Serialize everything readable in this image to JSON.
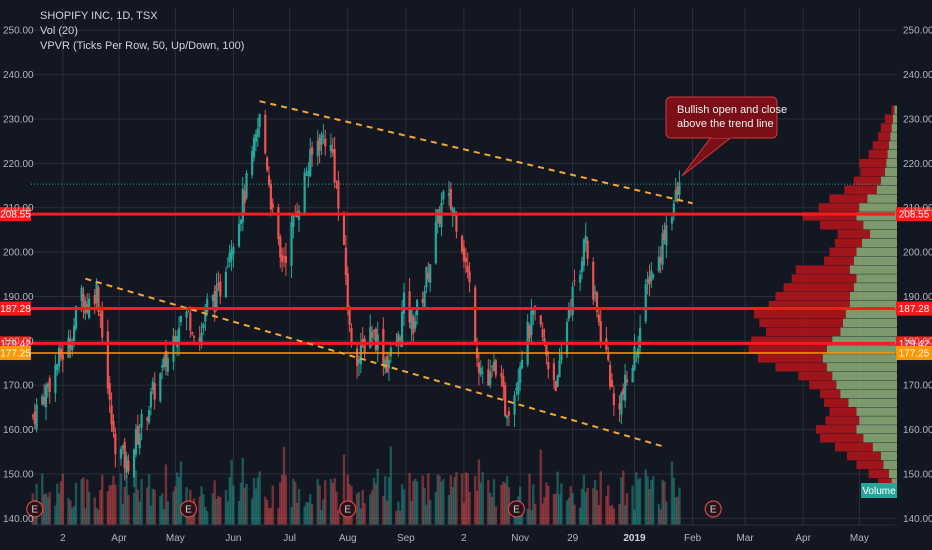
{
  "legend": {
    "symbol_line": "SHOPIFY INC, 1D, TSX",
    "volume_line": "Vol (20)",
    "vpvr_line": "VPVR (Ticks Per Row, 50, Up/Down, 100)"
  },
  "annotation": {
    "line1": "Bullish open and close",
    "line2": "above the trend line"
  },
  "volume_tag": "Volume",
  "earnings_marker": "E",
  "colors": {
    "background": "#131722",
    "grid": "#2a2e39",
    "up": "#26a69a",
    "down": "#ef5350",
    "level_line": "#ff1a1a",
    "level_line_orange": "#ff9800",
    "trendline": "#f7a633",
    "annotation_fill": "#7a0f17",
    "annotation_border": "#d23a42",
    "vpvr_up": "#8fb07a",
    "vpvr_down": "#b0151c"
  },
  "chart_data": {
    "type": "candlestick",
    "title": "SHOPIFY INC, 1D, TSX",
    "y_range": [
      138.5,
      255.0
    ],
    "y_ticks": [
      140,
      150,
      160,
      170,
      180,
      190,
      200,
      210,
      220,
      230,
      240,
      250
    ],
    "y_tick_labels": [
      "140.00",
      "150.00",
      "160.00",
      "170.00",
      "180.00",
      "190.00",
      "200.00",
      "210.00",
      "220.00",
      "230.00",
      "240.00",
      "250.00"
    ],
    "x_labels": [
      "2",
      "Apr",
      "May",
      "Jun",
      "Jul",
      "Aug",
      "Sep",
      "2",
      "Nov",
      "29",
      "2019",
      "Feb",
      "Mar",
      "Apr",
      "May"
    ],
    "x_label_dates": [
      "2018-03-02",
      "2018-04-01",
      "2018-05-01",
      "2018-06-01",
      "2018-07-01",
      "2018-08-01",
      "2018-09-01",
      "2018-10-02",
      "2018-11-01",
      "2018-11-29",
      "2019-01-01",
      "2019-02-01",
      "2019-03-01",
      "2019-04-01",
      "2019-05-01"
    ],
    "x_start": "2018-02-13",
    "x_end": "2019-05-20",
    "price_anchors": [
      [
        "2018-02-14",
        163
      ],
      [
        "2018-02-20",
        168
      ],
      [
        "2018-02-27",
        175
      ],
      [
        "2018-03-06",
        180
      ],
      [
        "2018-03-12",
        191
      ],
      [
        "2018-03-15",
        188
      ],
      [
        "2018-03-20",
        192
      ],
      [
        "2018-03-23",
        183
      ],
      [
        "2018-03-27",
        165
      ],
      [
        "2018-03-29",
        158
      ],
      [
        "2018-04-05",
        152
      ],
      [
        "2018-04-12",
        160
      ],
      [
        "2018-04-19",
        168
      ],
      [
        "2018-04-26",
        175
      ],
      [
        "2018-05-03",
        185
      ],
      [
        "2018-05-08",
        186
      ],
      [
        "2018-05-14",
        180
      ],
      [
        "2018-05-18",
        188
      ],
      [
        "2018-05-24",
        190
      ],
      [
        "2018-05-29",
        200
      ],
      [
        "2018-06-04",
        208
      ],
      [
        "2018-06-08",
        215
      ],
      [
        "2018-06-13",
        225
      ],
      [
        "2018-06-15",
        230
      ],
      [
        "2018-06-19",
        220
      ],
      [
        "2018-06-22",
        208
      ],
      [
        "2018-06-26",
        198
      ],
      [
        "2018-06-29",
        200
      ],
      [
        "2018-07-05",
        210
      ],
      [
        "2018-07-10",
        218
      ],
      [
        "2018-07-16",
        225
      ],
      [
        "2018-07-20",
        226
      ],
      [
        "2018-07-24",
        222
      ],
      [
        "2018-07-27",
        210
      ],
      [
        "2018-07-31",
        195
      ],
      [
        "2018-08-02",
        182
      ],
      [
        "2018-08-07",
        176
      ],
      [
        "2018-08-13",
        183
      ],
      [
        "2018-08-17",
        180
      ],
      [
        "2018-08-22",
        175
      ],
      [
        "2018-08-28",
        180
      ],
      [
        "2018-08-31",
        188
      ],
      [
        "2018-09-05",
        184
      ],
      [
        "2018-09-11",
        192
      ],
      [
        "2018-09-17",
        205
      ],
      [
        "2018-09-21",
        212
      ],
      [
        "2018-09-26",
        210
      ],
      [
        "2018-09-30",
        205
      ],
      [
        "2018-10-05",
        192
      ],
      [
        "2018-10-10",
        175
      ],
      [
        "2018-10-15",
        170
      ],
      [
        "2018-10-19",
        175
      ],
      [
        "2018-10-24",
        165
      ],
      [
        "2018-10-28",
        167
      ],
      [
        "2018-11-02",
        178
      ],
      [
        "2018-11-08",
        185
      ],
      [
        "2018-11-12",
        182
      ],
      [
        "2018-11-16",
        175
      ],
      [
        "2018-11-21",
        170
      ],
      [
        "2018-11-27",
        188
      ],
      [
        "2018-12-03",
        195
      ],
      [
        "2018-12-05",
        205
      ],
      [
        "2018-12-10",
        190
      ],
      [
        "2018-12-14",
        182
      ],
      [
        "2018-12-18",
        175
      ],
      [
        "2018-12-21",
        165
      ],
      [
        "2018-12-26",
        168
      ],
      [
        "2018-12-31",
        175
      ],
      [
        "2019-01-04",
        183
      ],
      [
        "2019-01-09",
        195
      ],
      [
        "2019-01-14",
        198
      ],
      [
        "2019-01-17",
        205
      ],
      [
        "2019-01-21",
        210
      ],
      [
        "2019-01-24",
        213
      ],
      [
        "2019-01-25",
        214
      ]
    ],
    "horizontal_levels": [
      {
        "price": 208.55,
        "label": "208.55",
        "color": "#ff1a1a"
      },
      {
        "price": 187.28,
        "label": "187.28",
        "color": "#ff1a1a"
      },
      {
        "price": 179.42,
        "label": "179.42",
        "color": "#ff1a1a"
      },
      {
        "price": 177.25,
        "label": "177.25",
        "color": "#ff9800"
      }
    ],
    "current_price": 215.3,
    "trendlines": [
      {
        "from": [
          "2018-06-15",
          234.0
        ],
        "to": [
          "2019-02-01",
          211.0
        ]
      },
      {
        "from": [
          "2018-03-14",
          194.0
        ],
        "to": [
          "2019-01-18",
          156.0
        ]
      }
    ],
    "earnings_dates": [
      "2018-02-15",
      "2018-05-08",
      "2018-08-01",
      "2018-10-30",
      "2019-02-12"
    ],
    "vpvr_profile": [
      {
        "price": 233,
        "up": 2,
        "down": 2
      },
      {
        "price": 231,
        "up": 3,
        "down": 6
      },
      {
        "price": 229,
        "up": 4,
        "down": 8
      },
      {
        "price": 227,
        "up": 5,
        "down": 9
      },
      {
        "price": 225,
        "up": 6,
        "down": 12
      },
      {
        "price": 223,
        "up": 7,
        "down": 14
      },
      {
        "price": 221,
        "up": 8,
        "down": 20
      },
      {
        "price": 219,
        "up": 9,
        "down": 18
      },
      {
        "price": 217,
        "up": 12,
        "down": 20
      },
      {
        "price": 215,
        "up": 15,
        "down": 24
      },
      {
        "price": 213,
        "up": 22,
        "down": 28
      },
      {
        "price": 211,
        "up": 28,
        "down": 30
      },
      {
        "price": 209,
        "up": 30,
        "down": 40
      },
      {
        "price": 207,
        "up": 25,
        "down": 32
      },
      {
        "price": 205,
        "up": 20,
        "down": 24
      },
      {
        "price": 203,
        "up": 26,
        "down": 20
      },
      {
        "price": 201,
        "up": 30,
        "down": 20
      },
      {
        "price": 199,
        "up": 32,
        "down": 22
      },
      {
        "price": 197,
        "up": 35,
        "down": 40
      },
      {
        "price": 195,
        "up": 30,
        "down": 48
      },
      {
        "price": 193,
        "up": 32,
        "down": 52
      },
      {
        "price": 191,
        "up": 35,
        "down": 55
      },
      {
        "price": 189,
        "up": 35,
        "down": 60
      },
      {
        "price": 187,
        "up": 38,
        "down": 68
      },
      {
        "price": 185,
        "up": 40,
        "down": 62
      },
      {
        "price": 183,
        "up": 42,
        "down": 55
      },
      {
        "price": 181,
        "up": 48,
        "down": 60
      },
      {
        "price": 179,
        "up": 52,
        "down": 58
      },
      {
        "price": 177,
        "up": 55,
        "down": 48
      },
      {
        "price": 175,
        "up": 52,
        "down": 38
      },
      {
        "price": 173,
        "up": 48,
        "down": 25
      },
      {
        "price": 171,
        "up": 45,
        "down": 20
      },
      {
        "price": 169,
        "up": 42,
        "down": 15
      },
      {
        "price": 167,
        "up": 36,
        "down": 18
      },
      {
        "price": 165,
        "up": 30,
        "down": 20
      },
      {
        "price": 163,
        "up": 28,
        "down": 25
      },
      {
        "price": 161,
        "up": 30,
        "down": 30
      },
      {
        "price": 159,
        "up": 25,
        "down": 32
      },
      {
        "price": 157,
        "up": 18,
        "down": 28
      },
      {
        "price": 155,
        "up": 12,
        "down": 25
      },
      {
        "price": 153,
        "up": 10,
        "down": 20
      },
      {
        "price": 151,
        "up": 6,
        "down": 15
      },
      {
        "price": 149,
        "up": 4,
        "down": 10
      },
      {
        "price": 147,
        "up": 2,
        "down": 5
      }
    ]
  }
}
